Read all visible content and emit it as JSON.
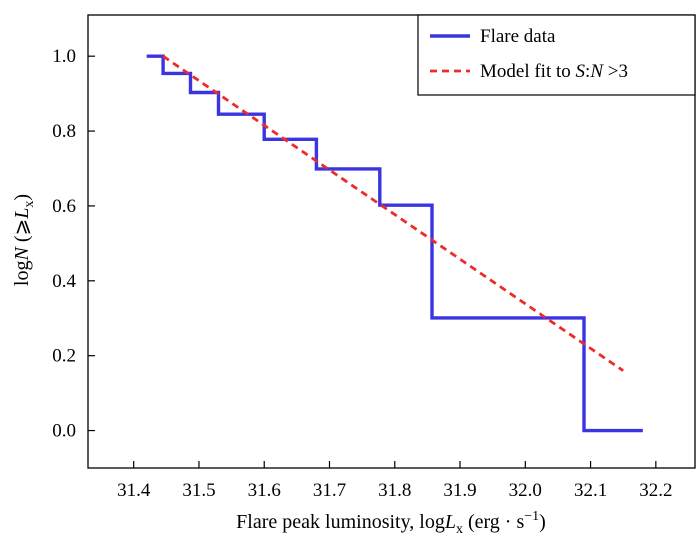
{
  "chart_data": {
    "type": "line",
    "title": "",
    "xlabel": {
      "prefix": "Flare peak luminosity, log",
      "var": "L",
      "sub": "x",
      "unit_open": " (erg · s",
      "unit_sup": "−1",
      "unit_close": ")"
    },
    "ylabel": {
      "prefix": "log",
      "var": "N",
      "middle": " (⩾",
      "var2": "L",
      "sub": "x",
      "close": ")"
    },
    "xlim": [
      31.33,
      32.26
    ],
    "ylim": [
      -0.1,
      1.11
    ],
    "xticks": [
      31.4,
      31.5,
      31.6,
      31.7,
      31.8,
      31.9,
      32.0,
      32.1,
      32.2
    ],
    "xtick_labels": [
      "31.4",
      "31.5",
      "31.6",
      "31.7",
      "31.8",
      "31.9",
      "32.0",
      "32.1",
      "32.2"
    ],
    "yticks": [
      0.0,
      0.2,
      0.4,
      0.6,
      0.8,
      1.0
    ],
    "ytick_labels": [
      "0.0",
      "0.2",
      "0.4",
      "0.6",
      "0.8",
      "1.0"
    ],
    "grid": false,
    "legend_position": "top-right",
    "series": [
      {
        "name": "Flare data",
        "style": "step",
        "color": "#3a35e0",
        "x": [
          31.42,
          31.445,
          31.445,
          31.487,
          31.487,
          31.53,
          31.53,
          31.6,
          31.6,
          31.68,
          31.68,
          31.777,
          31.777,
          31.857,
          31.857,
          32.09,
          32.09,
          32.18
        ],
        "y": [
          1.0,
          1.0,
          0.954,
          0.954,
          0.903,
          0.903,
          0.845,
          0.845,
          0.778,
          0.778,
          0.699,
          0.699,
          0.602,
          0.602,
          0.301,
          0.301,
          0.0,
          0.0
        ]
      },
      {
        "name": "Model fit to S:N>3",
        "legend_parts": [
          "Model fit to ",
          "S",
          ":",
          "N",
          " >3"
        ],
        "style": "dashed",
        "color": "#ee2b2b",
        "x": [
          31.445,
          32.15
        ],
        "y": [
          1.0,
          0.16
        ]
      }
    ]
  }
}
